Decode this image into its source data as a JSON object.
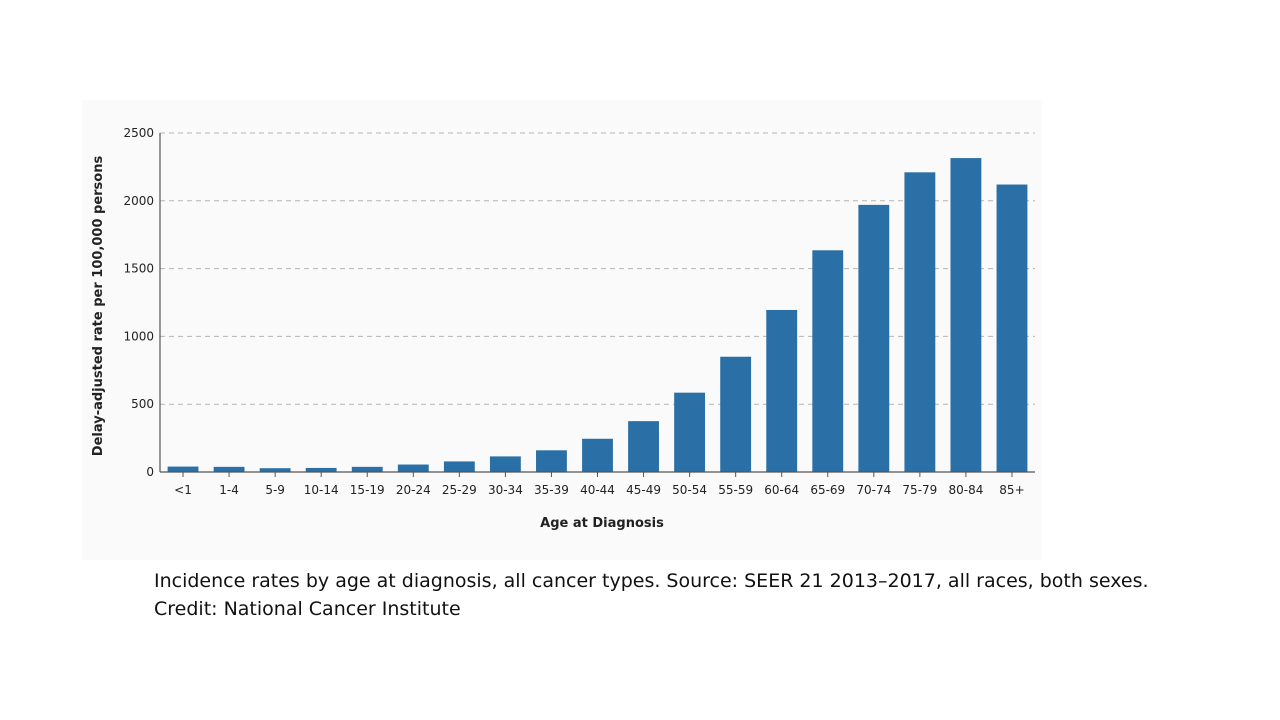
{
  "chart_data": {
    "type": "bar",
    "xlabel": "Age at Diagnosis",
    "ylabel": "Delay-adjusted rate per 100,000 persons",
    "categories": [
      "<1",
      "1-4",
      "5-9",
      "10-14",
      "15-19",
      "20-24",
      "25-29",
      "30-34",
      "35-39",
      "40-44",
      "45-49",
      "50-54",
      "55-59",
      "60-64",
      "65-69",
      "70-74",
      "75-79",
      "80-84",
      "85+"
    ],
    "values": [
      40,
      38,
      28,
      30,
      38,
      55,
      78,
      115,
      160,
      245,
      375,
      585,
      850,
      1195,
      1635,
      1970,
      2210,
      2315,
      2120
    ],
    "ylim": [
      0,
      2500
    ],
    "yticks": [
      0,
      500,
      1000,
      1500,
      2000,
      2500
    ],
    "grid": "horizontal dashed",
    "legend": "none",
    "bar_color": "#2a6fa5"
  },
  "caption": {
    "line1": "Incidence rates by age at diagnosis, all cancer types. Source: SEER 21 2013–2017, all races, both sexes.",
    "line2": "Credit: National Cancer Institute"
  }
}
